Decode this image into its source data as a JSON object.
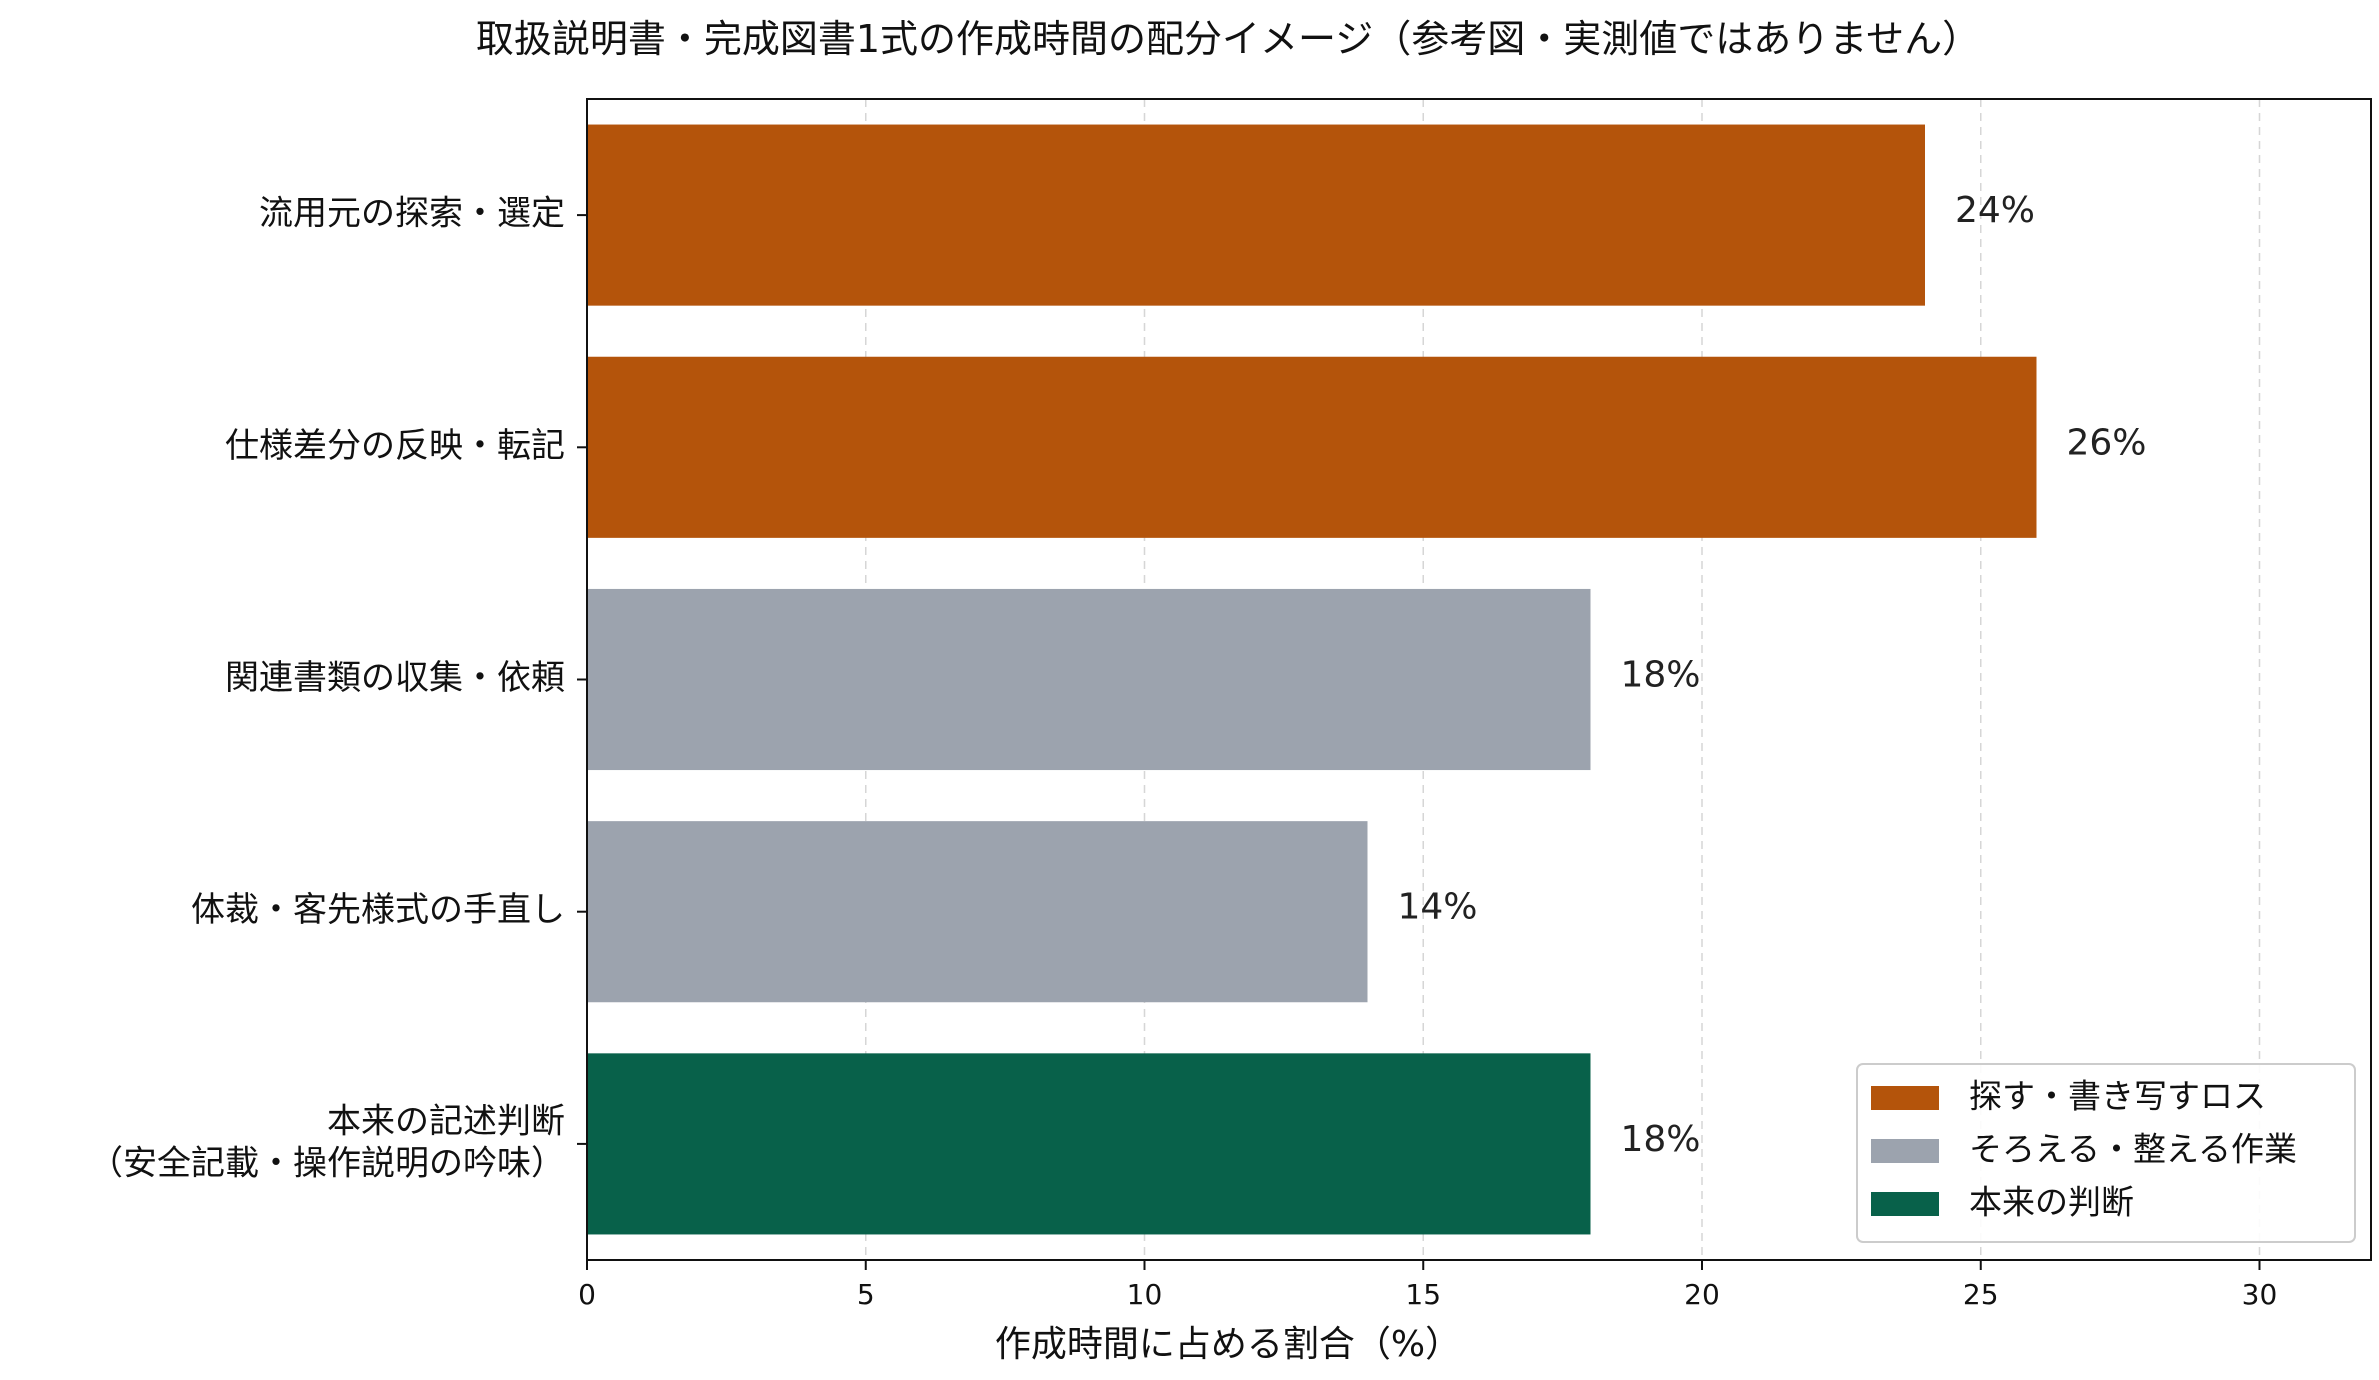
{
  "chart_data": {
    "type": "bar",
    "orientation": "horizontal",
    "title": "取扱説明書・完成図書1式の作成時間の配分イメージ（参考図・実測値ではありません）",
    "xlabel": "作成時間に占める割合（%）",
    "ylabel": "",
    "xlim": [
      0,
      32
    ],
    "xticks": [
      0,
      5,
      10,
      15,
      20,
      25,
      30
    ],
    "grid": "x-dashed",
    "legend_position": "bottom-right",
    "categories": [
      [
        "流用元の探索・選定"
      ],
      [
        "仕様差分の反映・転記"
      ],
      [
        "関連書類の収集・依頼"
      ],
      [
        "体裁・客先様式の手直し"
      ],
      [
        "本来の記述判断",
        "（安全記載・操作説明の吟味）"
      ]
    ],
    "values": [
      24,
      26,
      18,
      14,
      18
    ],
    "value_labels": [
      "24%",
      "26%",
      "18%",
      "14%",
      "18%"
    ],
    "groups": [
      0,
      0,
      1,
      1,
      2
    ],
    "legend": [
      {
        "name": "探す・書き写すロス",
        "color": "#b4540b"
      },
      {
        "name": "そろえる・整える作業",
        "color": "#9ca3ae"
      },
      {
        "name": "本来の判断",
        "color": "#08614a"
      }
    ]
  }
}
